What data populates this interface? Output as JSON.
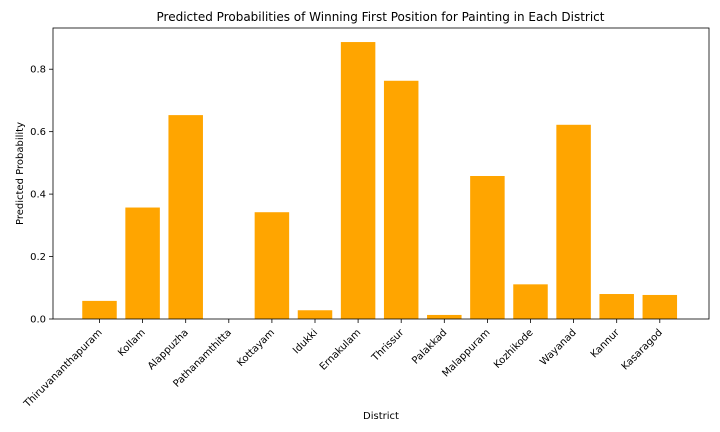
{
  "chart_data": {
    "type": "bar",
    "title": "Predicted Probabilities of Winning First Position for Painting in Each District",
    "xlabel": "District",
    "ylabel": "Predicted Probability",
    "categories": [
      "Thiruvananthapuram",
      "Kollam",
      "Alappuzha",
      "Pathanamthitta",
      "Kottayam",
      "Idukki",
      "Ernakulam",
      "Thrissur",
      "Palakkad",
      "Malappuram",
      "Kozhikode",
      "Wayanad",
      "Kannur",
      "Kasaragod"
    ],
    "values": [
      0.058,
      0.357,
      0.653,
      0.0,
      0.342,
      0.028,
      0.887,
      0.763,
      0.013,
      0.458,
      0.111,
      0.622,
      0.08,
      0.077
    ],
    "ylim": [
      0,
      0.932
    ],
    "yticks": [
      0.0,
      0.2,
      0.4,
      0.6,
      0.8
    ],
    "ytick_labels": [
      "0.0",
      "0.2",
      "0.4",
      "0.6",
      "0.8"
    ],
    "bar_color": "#ffa500",
    "grid": false,
    "legend": "none"
  }
}
